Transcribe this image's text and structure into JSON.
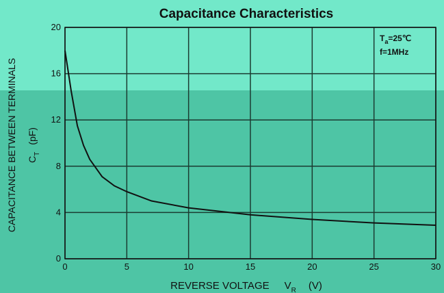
{
  "chart_data": {
    "type": "line",
    "title": "Capacitance Characteristics",
    "x_label": {
      "text": "REVERSE VOLTAGE",
      "symbol": "V",
      "subscript": "R",
      "unit": "(V)"
    },
    "y_label": {
      "text": "CAPACITANCE BETWEEN TERMINALS",
      "symbol": "C",
      "subscript": "T",
      "unit": "(pF)"
    },
    "annotation": {
      "symbol": "T",
      "subscript": "a",
      "rest": "=25℃",
      "line2": "f=1MHz"
    },
    "x": [
      0,
      0.5,
      1,
      1.5,
      2,
      3,
      4,
      5,
      7,
      10,
      15,
      20,
      25,
      30
    ],
    "series": [
      {
        "name": "CT",
        "color": "#111111",
        "values": [
          18,
          14.5,
          11.5,
          9.8,
          8.6,
          7.1,
          6.3,
          5.8,
          5.0,
          4.4,
          3.8,
          3.4,
          3.1,
          2.9
        ]
      }
    ],
    "xlim": [
      0,
      30
    ],
    "xticks": [
      0,
      5,
      10,
      15,
      20,
      25,
      30
    ],
    "ylim": [
      0,
      20
    ],
    "yticks": [
      0,
      4,
      8,
      12,
      16,
      20
    ],
    "grid": true
  }
}
